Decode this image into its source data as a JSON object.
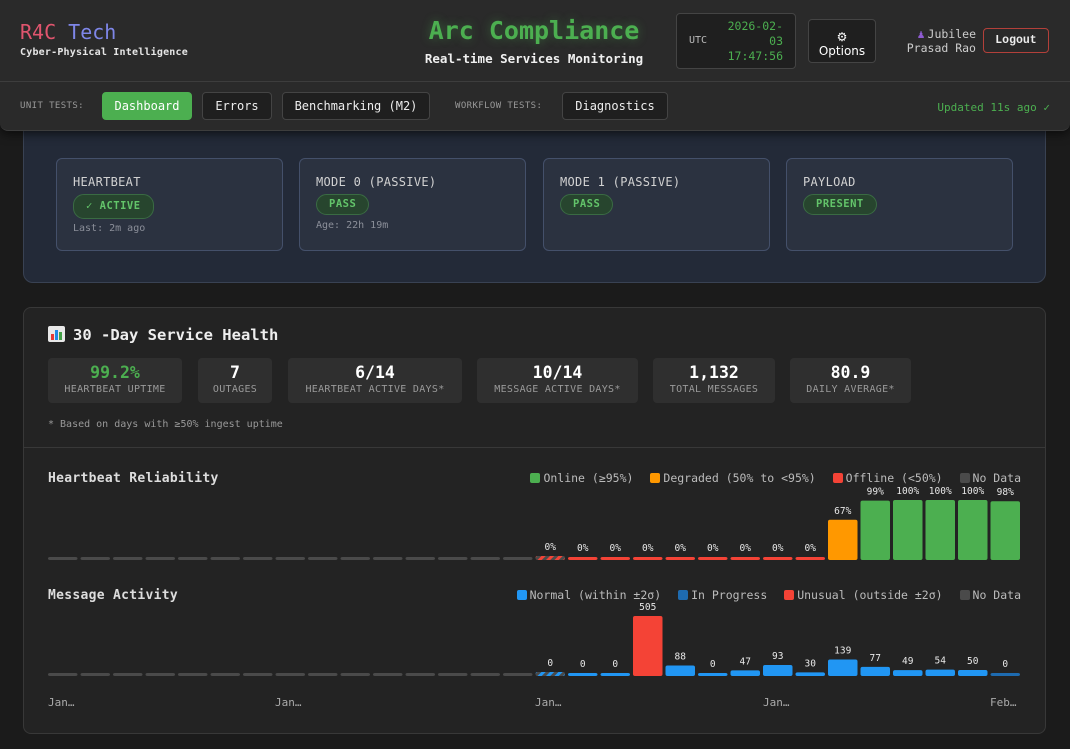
{
  "brand": {
    "name_part1": "R4C",
    "name_part2": "Tech",
    "tagline": "Cyber-Physical Intelligence"
  },
  "header": {
    "title": "Arc Compliance",
    "subtitle": "Real-time Services Monitoring",
    "clock_tz": "UTC",
    "clock_date_line1": "2026-02-",
    "clock_date_line2": "03",
    "clock_time": "17:47:56",
    "options_icon": "gear-icon",
    "options_label": "Options",
    "user_icon": "user-icon",
    "user_first": "Jubilee",
    "user_last": "Prasad Rao",
    "logout_label": "Logout"
  },
  "nav": {
    "unit_tests_label": "UNIT TESTS:",
    "workflow_tests_label": "WORKFLOW TESTS:",
    "dashboard": "Dashboard",
    "errors": "Errors",
    "benchmarking": "Benchmarking (M2)",
    "diagnostics": "Diagnostics",
    "updated": "Updated 11s ago ✓"
  },
  "status": {
    "tiles": [
      {
        "title": "HEARTBEAT",
        "badge": "✓ ACTIVE",
        "sub": "Last: 2m ago"
      },
      {
        "title": "MODE 0 (PASSIVE)",
        "badge": "PASS",
        "sub": "Age: 22h 19m"
      },
      {
        "title": "MODE 1 (PASSIVE)",
        "badge": "PASS",
        "sub": ""
      },
      {
        "title": "PAYLOAD",
        "badge": "PRESENT",
        "sub": ""
      }
    ]
  },
  "health": {
    "title_icon": "bar-chart-icon",
    "title": "30 -Day Service Health",
    "stats": [
      {
        "value": "99.2%",
        "label": "HEARTBEAT UPTIME"
      },
      {
        "value": "7",
        "label": "OUTAGES"
      },
      {
        "value": "6/14",
        "label": "HEARTBEAT ACTIVE DAYS*"
      },
      {
        "value": "10/14",
        "label": "MESSAGE ACTIVE DAYS*"
      },
      {
        "value": "1,132",
        "label": "TOTAL MESSAGES"
      },
      {
        "value": "80.9",
        "label": "DAILY AVERAGE*"
      }
    ],
    "footnote": "* Based on days with ≥50% ingest uptime",
    "x_labels": [
      "Jan…",
      "Jan…",
      "Jan…",
      "Jan…",
      "Feb…"
    ]
  },
  "chart_data": [
    {
      "type": "bar",
      "title": "Heartbeat Reliability",
      "legend": [
        {
          "name": "Online (≥95%)",
          "color": "#4caf50"
        },
        {
          "name": "Degraded (50% to <95%)",
          "color": "#ff9800"
        },
        {
          "name": "Offline (<50%)",
          "color": "#f44336"
        },
        {
          "name": "No Data",
          "color": "#4a4a4a"
        }
      ],
      "unit": "%",
      "status": [
        "none",
        "none",
        "none",
        "none",
        "none",
        "none",
        "none",
        "none",
        "none",
        "none",
        "none",
        "none",
        "none",
        "none",
        "none",
        "partial-offline",
        "offline",
        "offline",
        "offline",
        "offline",
        "offline",
        "offline",
        "offline",
        "offline",
        "degraded",
        "online",
        "online",
        "online",
        "online",
        "online"
      ],
      "values": [
        null,
        null,
        null,
        null,
        null,
        null,
        null,
        null,
        null,
        null,
        null,
        null,
        null,
        null,
        null,
        0,
        0,
        0,
        0,
        0,
        0,
        0,
        0,
        0,
        67,
        99,
        100,
        100,
        100,
        98
      ],
      "ylim": [
        0,
        100
      ]
    },
    {
      "type": "bar",
      "title": "Message Activity",
      "legend": [
        {
          "name": "Normal (within ±2σ)",
          "color": "#2196f3"
        },
        {
          "name": "In Progress",
          "color": "#1e6bb0"
        },
        {
          "name": "Unusual (outside ±2σ)",
          "color": "#f44336"
        },
        {
          "name": "No Data",
          "color": "#4a4a4a"
        }
      ],
      "status": [
        "none",
        "none",
        "none",
        "none",
        "none",
        "none",
        "none",
        "none",
        "none",
        "none",
        "none",
        "none",
        "none",
        "none",
        "none",
        "partial",
        "normal",
        "normal",
        "unusual",
        "normal",
        "normal",
        "normal",
        "normal",
        "normal",
        "normal",
        "normal",
        "normal",
        "normal",
        "normal",
        "progress"
      ],
      "values": [
        null,
        null,
        null,
        null,
        null,
        null,
        null,
        null,
        null,
        null,
        null,
        null,
        null,
        null,
        null,
        0,
        0,
        0,
        505,
        88,
        0,
        47,
        93,
        30,
        139,
        77,
        49,
        54,
        50,
        0
      ],
      "ylim": [
        0,
        505
      ]
    }
  ]
}
